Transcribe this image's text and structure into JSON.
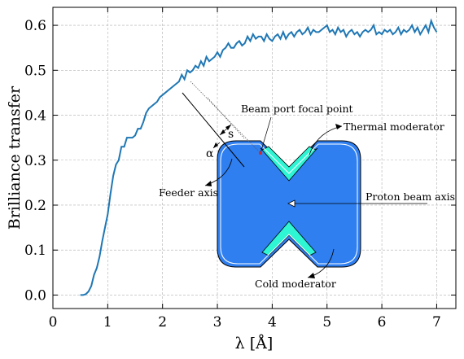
{
  "chart_data": {
    "type": "line",
    "title": "",
    "xlabel": "λ [Å]",
    "ylabel": "Brilliance transfer",
    "xlim": [
      0,
      7.35
    ],
    "ylim": [
      -0.03,
      0.64
    ],
    "grid": true,
    "x_ticks": [
      0,
      1,
      2,
      3,
      4,
      5,
      6,
      7
    ],
    "y_ticks": [
      0.0,
      0.1,
      0.2,
      0.3,
      0.4,
      0.5,
      0.6
    ],
    "x_tick_labels": [
      "0",
      "1",
      "2",
      "3",
      "4",
      "5",
      "6",
      "7"
    ],
    "y_tick_labels": [
      "0.0",
      "0.1",
      "0.2",
      "0.3",
      "0.4",
      "0.5",
      "0.6"
    ],
    "line_color": "#1f77b4",
    "series": [
      {
        "x": [
          0.5,
          0.55,
          0.6,
          0.65,
          0.7,
          0.75,
          0.8,
          0.85,
          0.9,
          0.95,
          1.0,
          1.05,
          1.1,
          1.15,
          1.2,
          1.25,
          1.3,
          1.35,
          1.4,
          1.45,
          1.5,
          1.55,
          1.6,
          1.65,
          1.7,
          1.75,
          1.8,
          1.85,
          1.9,
          1.95,
          2.0,
          2.05,
          2.1,
          2.15,
          2.2,
          2.25,
          2.3,
          2.35,
          2.4,
          2.45,
          2.5,
          2.55,
          2.6,
          2.65,
          2.7,
          2.75,
          2.8,
          2.85,
          2.9,
          2.95,
          3.0,
          3.05,
          3.1,
          3.15,
          3.2,
          3.25,
          3.3,
          3.35,
          3.4,
          3.45,
          3.5,
          3.55,
          3.6,
          3.65,
          3.7,
          3.75,
          3.8,
          3.85,
          3.9,
          3.95,
          4.0,
          4.05,
          4.1,
          4.15,
          4.2,
          4.25,
          4.3,
          4.35,
          4.4,
          4.45,
          4.5,
          4.55,
          4.6,
          4.65,
          4.7,
          4.75,
          4.8,
          4.85,
          4.9,
          4.95,
          5.0,
          5.05,
          5.1,
          5.15,
          5.2,
          5.25,
          5.3,
          5.35,
          5.4,
          5.45,
          5.5,
          5.55,
          5.6,
          5.65,
          5.7,
          5.75,
          5.8,
          5.85,
          5.9,
          5.95,
          6.0,
          6.05,
          6.1,
          6.15,
          6.2,
          6.25,
          6.3,
          6.35,
          6.4,
          6.45,
          6.5,
          6.55,
          6.6,
          6.65,
          6.7,
          6.75,
          6.8,
          6.85,
          6.9,
          6.95,
          7.0
        ],
        "y": [
          0.0,
          0.0,
          0.002,
          0.008,
          0.02,
          0.045,
          0.06,
          0.085,
          0.12,
          0.15,
          0.18,
          0.225,
          0.265,
          0.29,
          0.3,
          0.33,
          0.33,
          0.35,
          0.35,
          0.35,
          0.355,
          0.37,
          0.37,
          0.385,
          0.405,
          0.415,
          0.42,
          0.425,
          0.43,
          0.44,
          0.445,
          0.45,
          0.455,
          0.46,
          0.465,
          0.47,
          0.475,
          0.49,
          0.48,
          0.5,
          0.495,
          0.5,
          0.51,
          0.505,
          0.52,
          0.51,
          0.53,
          0.52,
          0.525,
          0.53,
          0.54,
          0.53,
          0.545,
          0.55,
          0.56,
          0.55,
          0.55,
          0.56,
          0.565,
          0.555,
          0.56,
          0.575,
          0.565,
          0.58,
          0.57,
          0.575,
          0.575,
          0.565,
          0.58,
          0.57,
          0.565,
          0.575,
          0.58,
          0.57,
          0.585,
          0.57,
          0.58,
          0.585,
          0.575,
          0.585,
          0.59,
          0.58,
          0.585,
          0.595,
          0.58,
          0.59,
          0.585,
          0.585,
          0.59,
          0.595,
          0.6,
          0.585,
          0.59,
          0.58,
          0.595,
          0.585,
          0.59,
          0.575,
          0.585,
          0.59,
          0.58,
          0.585,
          0.575,
          0.585,
          0.59,
          0.585,
          0.59,
          0.6,
          0.58,
          0.585,
          0.58,
          0.59,
          0.585,
          0.59,
          0.58,
          0.585,
          0.595,
          0.58,
          0.59,
          0.585,
          0.59,
          0.6,
          0.585,
          0.595,
          0.58,
          0.59,
          0.6,
          0.585,
          0.61,
          0.595,
          0.585
        ]
      }
    ],
    "inset": {
      "moderator_color": "#2f7ff0",
      "reflector_color": "#2ef5d3",
      "labels": {
        "focal_point": "Beam port focal point",
        "thermal": "Thermal moderator",
        "feeder": "Feeder axis",
        "proton": "Proton beam axis",
        "cold": "Cold moderator",
        "alpha": "α",
        "s": "s"
      }
    }
  }
}
